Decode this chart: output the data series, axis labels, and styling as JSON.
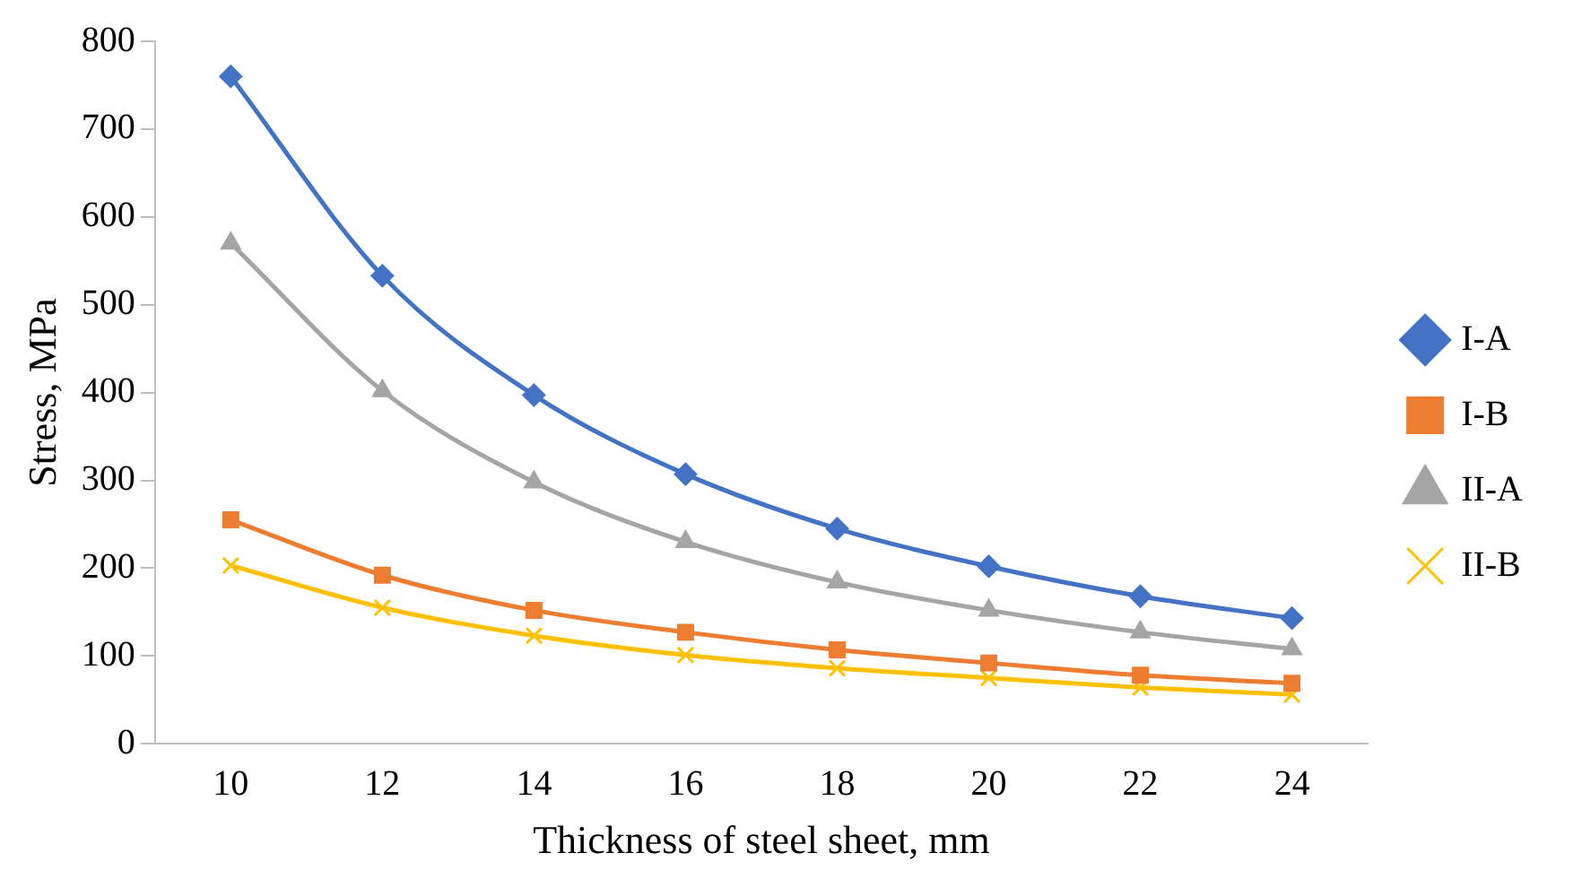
{
  "chart_data": {
    "type": "line",
    "xlabel": "Thickness of steel sheet, mm",
    "ylabel": "Stress, MPa",
    "categories": [
      "10",
      "12",
      "14",
      "16",
      "18",
      "20",
      "22",
      "24"
    ],
    "series": [
      {
        "name": "I-A",
        "color": "#4472c4",
        "marker": "diamond",
        "values": [
          760,
          533,
          397,
          307,
          245,
          202,
          168,
          143
        ]
      },
      {
        "name": "I-B",
        "color": "#ed7d31",
        "marker": "square",
        "values": [
          255,
          192,
          152,
          127,
          107,
          92,
          78,
          69
        ]
      },
      {
        "name": "II-A",
        "color": "#a5a5a5",
        "marker": "triangle",
        "values": [
          570,
          402,
          298,
          230,
          184,
          152,
          127,
          108
        ]
      },
      {
        "name": "II-B",
        "color": "#ffc000",
        "marker": "cross",
        "values": [
          203,
          155,
          123,
          101,
          86,
          75,
          64,
          56
        ]
      }
    ],
    "ylim": [
      0,
      800
    ],
    "yticks": [
      0,
      100,
      200,
      300,
      400,
      500,
      600,
      700,
      800
    ],
    "grid": false,
    "legend": "right"
  }
}
